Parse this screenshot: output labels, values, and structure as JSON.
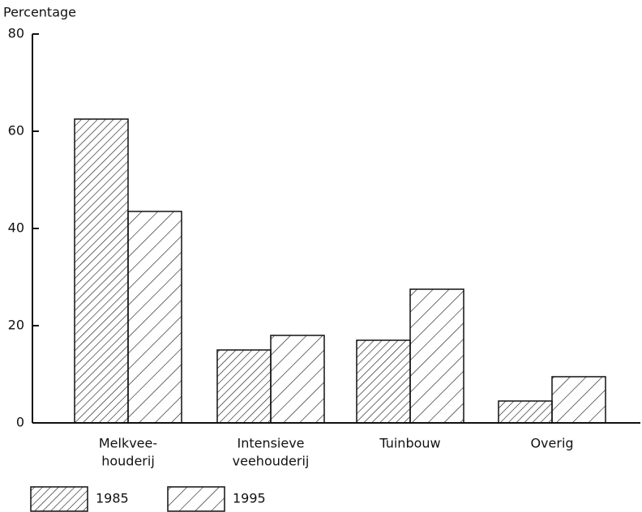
{
  "chart_data": {
    "type": "bar",
    "y_label": "Percentage",
    "categories": [
      [
        "Melkvee-",
        "houderij"
      ],
      [
        "Intensieve",
        "veehouderij"
      ],
      [
        "Tuinbouw"
      ],
      [
        "Overig"
      ]
    ],
    "series": [
      {
        "name": "1985",
        "color": "#111111",
        "values": [
          62.5,
          15,
          17,
          4.5
        ]
      },
      {
        "name": "1995",
        "color": "#111111",
        "values": [
          43.5,
          18,
          27.5,
          9.5
        ]
      }
    ],
    "ylim": [
      0,
      80
    ],
    "yticks": [
      0,
      20,
      40,
      60,
      80
    ]
  }
}
